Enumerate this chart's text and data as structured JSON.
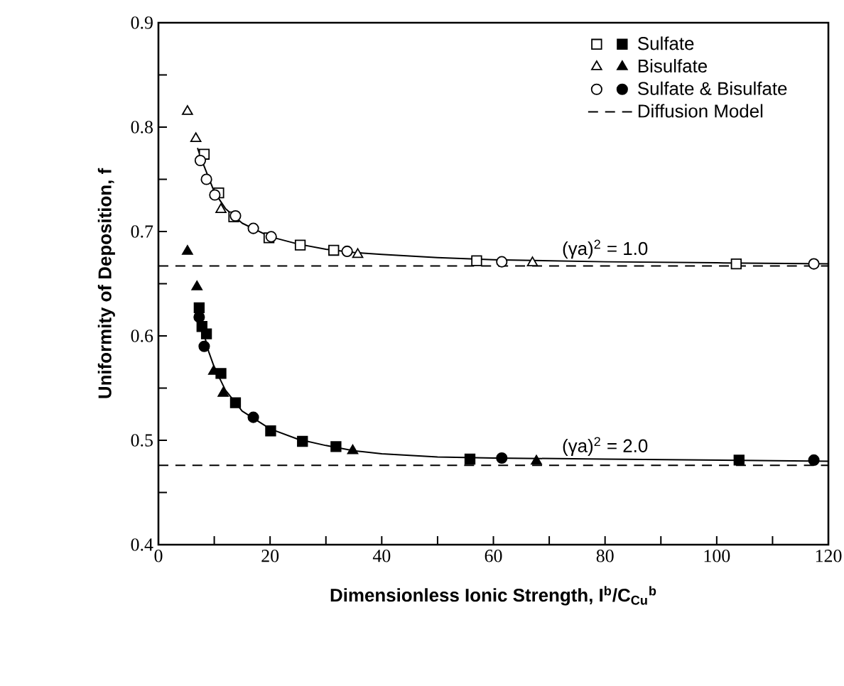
{
  "chart_data": {
    "type": "scatter",
    "xlabel": "Dimensionless Ionic Strength, I$^{b}$/C$_{Cu}$$^{b}$",
    "ylabel": "Uniformity of Deposition, f",
    "xlim": [
      0,
      120
    ],
    "ylim": [
      0.4,
      0.9
    ],
    "xticks": [
      0,
      {
        "value": 10,
        "label": null
      },
      20,
      {
        "value": 30,
        "label": null
      },
      40,
      {
        "value": 50,
        "label": null
      },
      60,
      {
        "value": 70,
        "label": null
      },
      80,
      {
        "value": 90,
        "label": null
      },
      100,
      {
        "value": 110,
        "label": null
      },
      120
    ],
    "yticks": [
      {
        "value": 0.4,
        "label": "0.4"
      },
      {
        "value": 0.45,
        "label": null
      },
      {
        "value": 0.5,
        "label": "0.5"
      },
      {
        "value": 0.55,
        "label": null
      },
      {
        "value": 0.6,
        "label": "0.6"
      },
      {
        "value": 0.65,
        "label": null
      },
      {
        "value": 0.7,
        "label": "0.7"
      },
      {
        "value": 0.75,
        "label": null
      },
      {
        "value": 0.8,
        "label": "0.8"
      },
      {
        "value": 0.85,
        "label": null
      },
      {
        "value": 0.9,
        "label": "0.9"
      }
    ],
    "grid": false,
    "legend": "top right",
    "annotations": [
      {
        "text": "(γa)$^{2}$ = 1.0",
        "x": 80,
        "y": 0.671
      },
      {
        "text": "(γa)$^{2}$ = 2.0",
        "x": 80,
        "y": 0.482
      }
    ],
    "series": [
      {
        "marker": "square",
        "color": "#ffffff",
        "x": [
          8.2,
          10.8,
          13.5,
          19.8,
          25.4,
          31.4,
          57,
          103.5
        ],
        "values": [
          0.774,
          0.737,
          0.714,
          0.694,
          0.687,
          0.682,
          0.672,
          0.669
        ]
      },
      {
        "marker": "triangle",
        "color": "#ffffff",
        "x": [
          5.2,
          6.7,
          11.2,
          35.7,
          67
        ],
        "values": [
          0.815,
          0.789,
          0.721,
          0.678,
          0.67
        ]
      },
      {
        "marker": "circle",
        "color": "#ffffff",
        "x": [
          7.5,
          8.6,
          10.1,
          13.8,
          17.0,
          20.2,
          33.8,
          61.5,
          117.4
        ],
        "values": [
          0.768,
          0.75,
          0.735,
          0.715,
          0.703,
          0.695,
          0.681,
          0.671,
          0.669
        ]
      },
      {
        "name": "Sulfate",
        "marker": "square",
        "color": "#000000",
        "x": [
          7.3,
          7.8,
          8.6,
          11.2,
          13.8,
          20.1,
          25.8,
          31.8,
          55.8,
          104
        ],
        "values": [
          0.627,
          0.609,
          0.602,
          0.564,
          0.536,
          0.509,
          0.499,
          0.494,
          0.482,
          0.481
        ]
      },
      {
        "name": "Bisulfate",
        "marker": "triangle",
        "color": "#000000",
        "x": [
          5.2,
          6.9,
          9.9,
          11.6,
          34.8,
          67.7
        ],
        "values": [
          0.681,
          0.647,
          0.566,
          0.545,
          0.49,
          0.48
        ]
      },
      {
        "name": "Sulfate & Bisulfate",
        "marker": "circle",
        "color": "#000000",
        "x": [
          7.3,
          8.2,
          17.0,
          61.5,
          117.4
        ],
        "values": [
          0.618,
          0.59,
          0.522,
          0.483,
          0.481
        ]
      },
      {
        "type": "line",
        "marker": "none",
        "line_style": "solid",
        "color": "#000000",
        "x": [
          7,
          8,
          10,
          12,
          15,
          20,
          25,
          30,
          35,
          40,
          50,
          60,
          80,
          100,
          120
        ],
        "values": [
          0.78,
          0.765,
          0.738,
          0.722,
          0.708,
          0.695,
          0.688,
          0.683,
          0.68,
          0.678,
          0.675,
          0.673,
          0.671,
          0.67,
          0.669
        ]
      },
      {
        "type": "line",
        "marker": "none",
        "line_style": "solid",
        "color": "#000000",
        "x": [
          7,
          8,
          9,
          10,
          12,
          15,
          20,
          25,
          30,
          35,
          40,
          50,
          60,
          80,
          100,
          120
        ],
        "values": [
          0.63,
          0.605,
          0.585,
          0.57,
          0.548,
          0.528,
          0.511,
          0.501,
          0.495,
          0.49,
          0.487,
          0.484,
          0.483,
          0.482,
          0.481,
          0.48
        ]
      },
      {
        "name": "Diffusion Model",
        "type": "line",
        "marker": "none",
        "line_style": "dashed",
        "color": "#000000",
        "x": [
          0,
          120
        ],
        "values": [
          0.667,
          0.667
        ]
      },
      {
        "type": "line",
        "marker": "none",
        "line_style": "dashed",
        "color": "#000000",
        "x": [
          0,
          120
        ],
        "values": [
          0.476,
          0.476
        ]
      }
    ]
  }
}
